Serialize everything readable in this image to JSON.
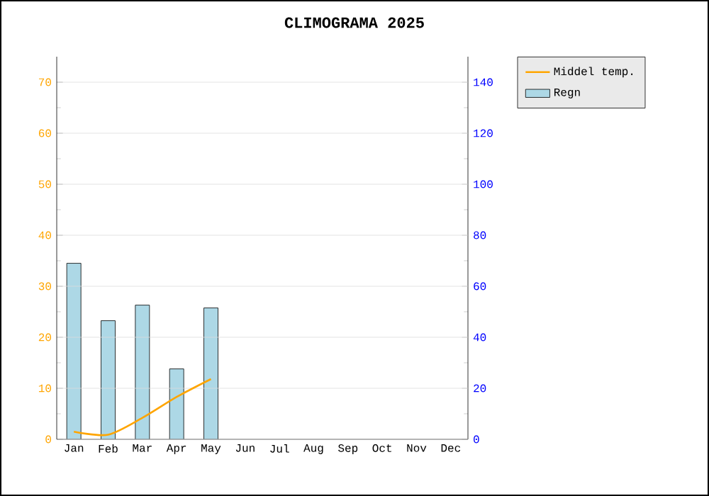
{
  "chart_data": {
    "type": "bar",
    "title": "CLIMOGRAMA 2025",
    "categories": [
      "Jan",
      "Feb",
      "Mar",
      "Apr",
      "May",
      "Jun",
      "Jul",
      "Aug",
      "Sep",
      "Oct",
      "Nov",
      "Dec"
    ],
    "series": [
      {
        "name": "Middel temp.",
        "type": "line",
        "color": "#ffa500",
        "values": [
          1.5,
          0.9,
          4.2,
          8.3,
          11.8,
          null,
          null,
          null,
          null,
          null,
          null,
          null
        ]
      },
      {
        "name": "Regn",
        "axis": "y2",
        "color": "#add8e6",
        "values": [
          69,
          46.5,
          52.6,
          27.6,
          51.5,
          null,
          null,
          null,
          null,
          null,
          null,
          null
        ]
      }
    ],
    "ylim": [
      0,
      75
    ],
    "yticks": [
      0,
      10,
      20,
      30,
      40,
      50,
      60,
      70
    ],
    "y2lim": [
      0,
      150
    ],
    "y2ticks": [
      0,
      20,
      40,
      60,
      80,
      100,
      120,
      140
    ],
    "grid": "y",
    "legend": "top right",
    "marker": "none",
    "line_style": "solid"
  }
}
